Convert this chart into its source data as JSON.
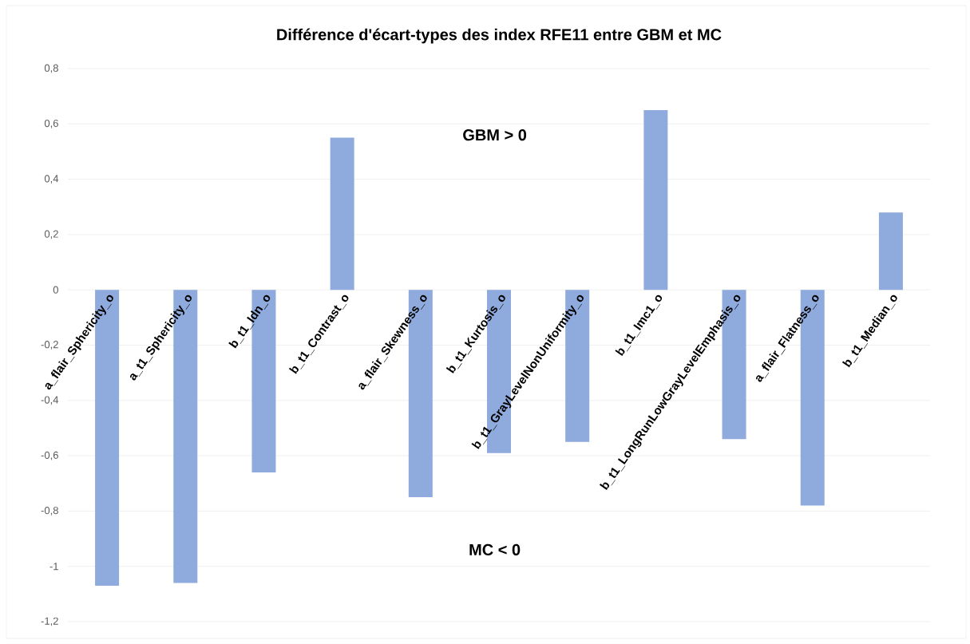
{
  "chart_data": {
    "type": "bar",
    "title": "Différence d'écart-types des index RFE11 entre GBM et MC",
    "categories": [
      "a_flair_Sphericity_o",
      "a_t1_Sphericity_o",
      "b_t1_Idn_o",
      "b_t1_Contrast_o",
      "a_flair_Skewness_o",
      "b_t1_Kurtosis_o",
      "b_t1_GrayLevelNonUniformity_o",
      "b_t1_Imc1_o",
      "b_t1_LongRunLowGrayLevelEmphasis_o",
      "a_flair_Flatness_o",
      "b_t1_Median_o"
    ],
    "values": [
      -1.07,
      -1.06,
      -0.66,
      0.55,
      -0.75,
      -0.59,
      -0.55,
      0.65,
      -0.54,
      -0.78,
      0.28
    ],
    "color": "#8faadc",
    "ylim": [
      -1.2,
      0.8
    ],
    "yticks": [
      {
        "value": -1.2,
        "label": "-1,2"
      },
      {
        "value": -1,
        "label": "-1"
      },
      {
        "value": -0.8,
        "label": "-0,8"
      },
      {
        "value": -0.6,
        "label": "-0,6"
      },
      {
        "value": -0.4,
        "label": "-0,4"
      },
      {
        "value": -0.2,
        "label": "-0,2"
      },
      {
        "value": 0,
        "label": "0"
      },
      {
        "value": 0.2,
        "label": "0,2"
      },
      {
        "value": 0.4,
        "label": "0,4"
      },
      {
        "value": 0.6,
        "label": "0,6"
      },
      {
        "value": 0.8,
        "label": "0,8"
      }
    ],
    "grid": "y",
    "annotations": [
      "GBM > 0",
      "MC < 0"
    ]
  }
}
